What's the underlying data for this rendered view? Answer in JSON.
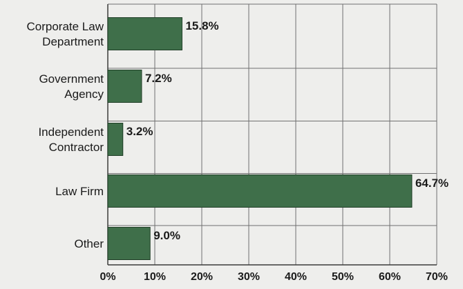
{
  "chart_data": {
    "type": "bar",
    "orientation": "horizontal",
    "categories": [
      [
        "Corporate Law",
        "Department"
      ],
      [
        "Government",
        "Agency"
      ],
      [
        "Independent",
        "Contractor"
      ],
      [
        "Law Firm"
      ],
      [
        "Other"
      ]
    ],
    "values": [
      15.8,
      7.2,
      3.2,
      64.7,
      9.0
    ],
    "value_labels": [
      "15.8%",
      "7.2%",
      "3.2%",
      "64.7%",
      "9.0%"
    ],
    "xlim": [
      0,
      70
    ],
    "x_ticks": [
      0,
      10,
      20,
      30,
      40,
      50,
      60,
      70
    ],
    "x_tick_labels": [
      "0%",
      "10%",
      "20%",
      "30%",
      "40%",
      "50%",
      "60%",
      "70%"
    ],
    "grid": true,
    "title": "",
    "xlabel": "",
    "ylabel": "",
    "colors": {
      "bar": "#3f6f4a",
      "grid": "#6f6f6f",
      "background": "#eeeeec"
    }
  }
}
